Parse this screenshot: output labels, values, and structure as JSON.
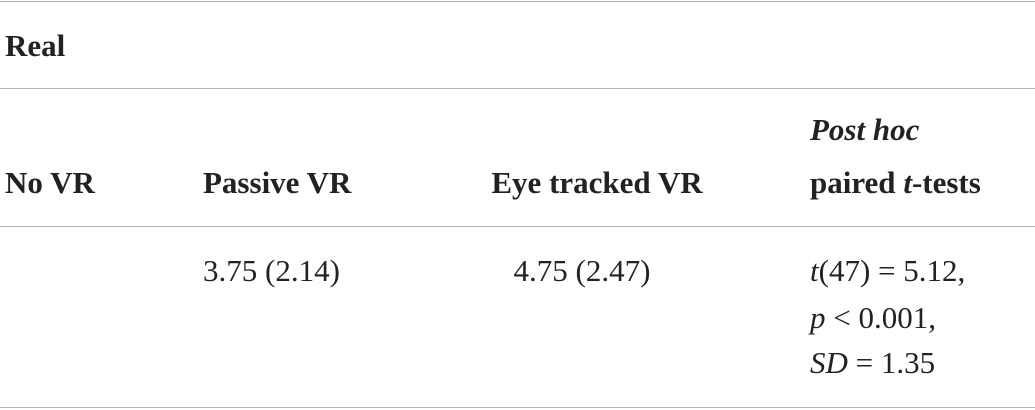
{
  "table": {
    "title": "Real",
    "header": [
      "No VR",
      "Passive VR",
      "Eye tracked VR",
      [
        "Post hoc",
        "paired",
        "t",
        "-tests"
      ]
    ],
    "rows": [
      [
        null,
        "3.75 (2.14)",
        "4.75 (2.47)",
        [
          [
            "t",
            "(47) = 5.12,"
          ],
          [
            "p",
            "< 0.001,"
          ],
          [
            "SD",
            "= 1.35"
          ]
        ]
      ]
    ]
  }
}
